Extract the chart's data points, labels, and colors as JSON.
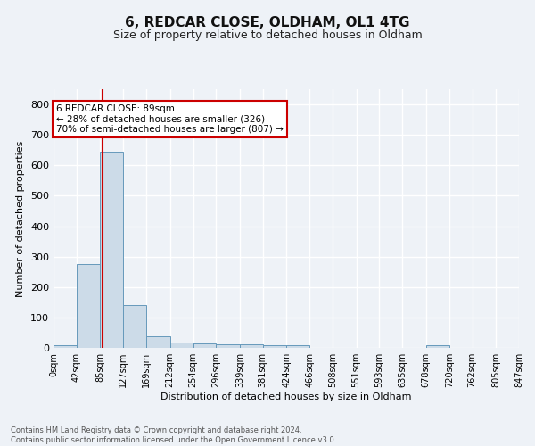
{
  "title": "6, REDCAR CLOSE, OLDHAM, OL1 4TG",
  "subtitle": "Size of property relative to detached houses in Oldham",
  "xlabel": "Distribution of detached houses by size in Oldham",
  "ylabel": "Number of detached properties",
  "bar_edges": [
    0,
    42,
    85,
    127,
    169,
    212,
    254,
    296,
    339,
    381,
    424,
    466,
    508,
    551,
    593,
    635,
    678,
    720,
    762,
    805,
    847
  ],
  "bar_heights": [
    8,
    275,
    645,
    140,
    38,
    18,
    15,
    12,
    12,
    10,
    10,
    0,
    0,
    0,
    0,
    0,
    8,
    0,
    0,
    0
  ],
  "bar_color": "#ccdbe8",
  "bar_edgecolor": "#6699bb",
  "property_value": 89,
  "redline_color": "#cc0000",
  "annotation_text": "6 REDCAR CLOSE: 89sqm\n← 28% of detached houses are smaller (326)\n70% of semi-detached houses are larger (807) →",
  "annotation_boxcolor": "#ffffff",
  "annotation_boxedge": "#cc0000",
  "ylim": [
    0,
    850
  ],
  "yticks": [
    0,
    100,
    200,
    300,
    400,
    500,
    600,
    700,
    800
  ],
  "tick_labels": [
    "0sqm",
    "42sqm",
    "85sqm",
    "127sqm",
    "169sqm",
    "212sqm",
    "254sqm",
    "296sqm",
    "339sqm",
    "381sqm",
    "424sqm",
    "466sqm",
    "508sqm",
    "551sqm",
    "593sqm",
    "635sqm",
    "678sqm",
    "720sqm",
    "762sqm",
    "805sqm",
    "847sqm"
  ],
  "footer1": "Contains HM Land Registry data © Crown copyright and database right 2024.",
  "footer2": "Contains public sector information licensed under the Open Government Licence v3.0.",
  "bg_color": "#eef2f7",
  "grid_color": "#ffffff",
  "title_fontsize": 11,
  "subtitle_fontsize": 9,
  "ylabel_fontsize": 8,
  "xlabel_fontsize": 8,
  "tick_fontsize": 7,
  "ytick_fontsize": 8,
  "annotation_fontsize": 7.5,
  "footer_fontsize": 6
}
